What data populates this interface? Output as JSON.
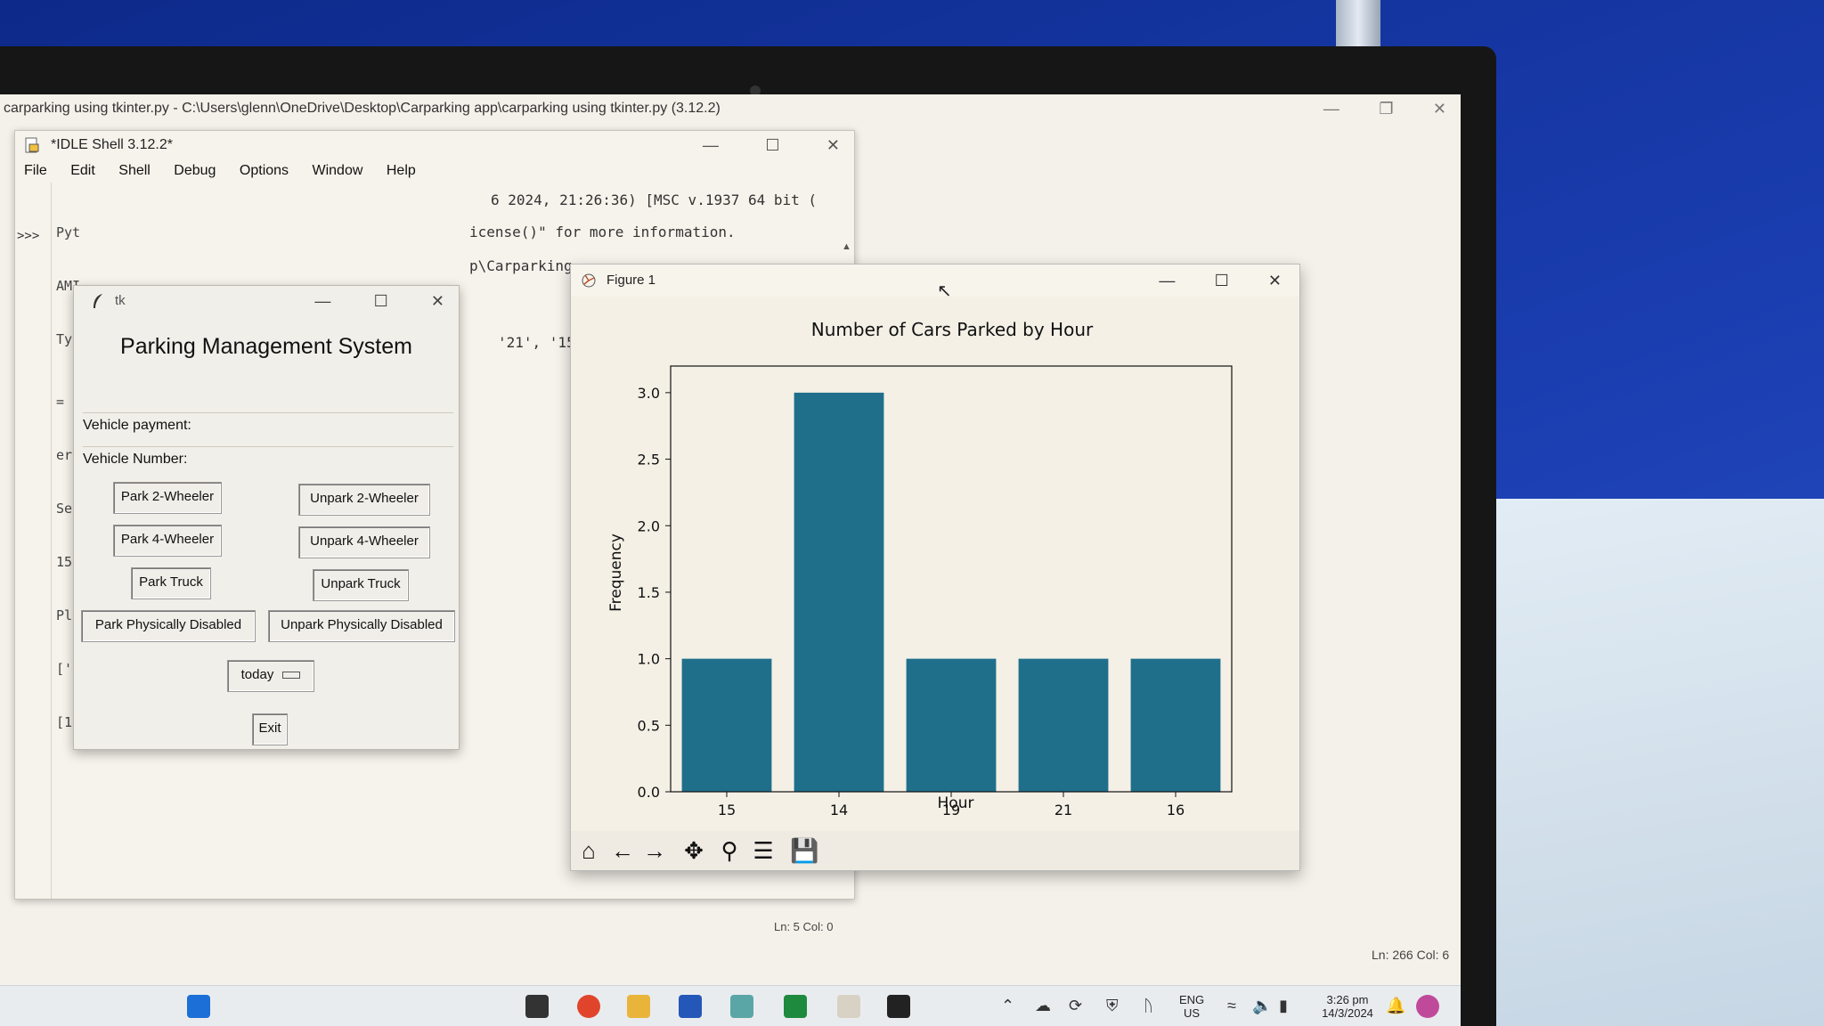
{
  "editor": {
    "title": "carparking using tkinter.py - C:\\Users\\glenn\\OneDrive\\Desktop\\Carparking app\\carparking using tkinter.py (3.12.2)",
    "status": "Ln: 266  Col: 6"
  },
  "idle": {
    "title": "*IDLE Shell 3.12.2*",
    "menu": [
      "File",
      "Edit",
      "Shell",
      "Debug",
      "Options",
      "Window",
      "Help"
    ],
    "prompt": ">>>",
    "left_fragments": [
      "Pyt",
      "AMI",
      "Tyr",
      "= I",
      "er.",
      "Se.",
      "15",
      "Pl:",
      "['",
      "[1,"
    ],
    "line1": "6 2024, 21:26:36) [MSC v.1937 64 bit (",
    "line2": "icense()\" for more information.",
    "line3": "p\\Carparking",
    "line4": "'21', '15']",
    "status": "Ln: 5  Col: 0"
  },
  "tk": {
    "title": "tk",
    "heading": "Parking Management System",
    "vehicle_payment_label": "Vehicle payment:",
    "vehicle_number_label": "Vehicle Number:",
    "buttons": {
      "park2": "Park 2-Wheeler",
      "unpark2": "Unpark 2-Wheeler",
      "park4": "Park 4-Wheeler",
      "unpark4": "Unpark 4-Wheeler",
      "parktruck": "Park Truck",
      "unparktruck": "Unpark Truck",
      "parkdisabled": "Park Physically Disabled",
      "unparkdisabled": "Unpark Physically Disabled",
      "exit": "Exit"
    },
    "date_option": "today"
  },
  "figure": {
    "title": "Figure 1"
  },
  "chart_data": {
    "type": "bar",
    "title": "Number of Cars Parked by Hour",
    "xlabel": "Hour",
    "ylabel": "Frequency",
    "categories": [
      "15",
      "14",
      "19",
      "21",
      "16"
    ],
    "values": [
      1,
      3,
      1,
      1,
      1
    ],
    "ylim": [
      0,
      3.2
    ],
    "yticks": [
      "0.0",
      "0.5",
      "1.0",
      "1.5",
      "2.0",
      "2.5",
      "3.0"
    ],
    "bar_color": "#1f6f8b",
    "grid": false
  },
  "taskbar": {
    "lang": "ENG",
    "region": "US",
    "time": "3:26 pm",
    "date": "14/3/2024"
  }
}
